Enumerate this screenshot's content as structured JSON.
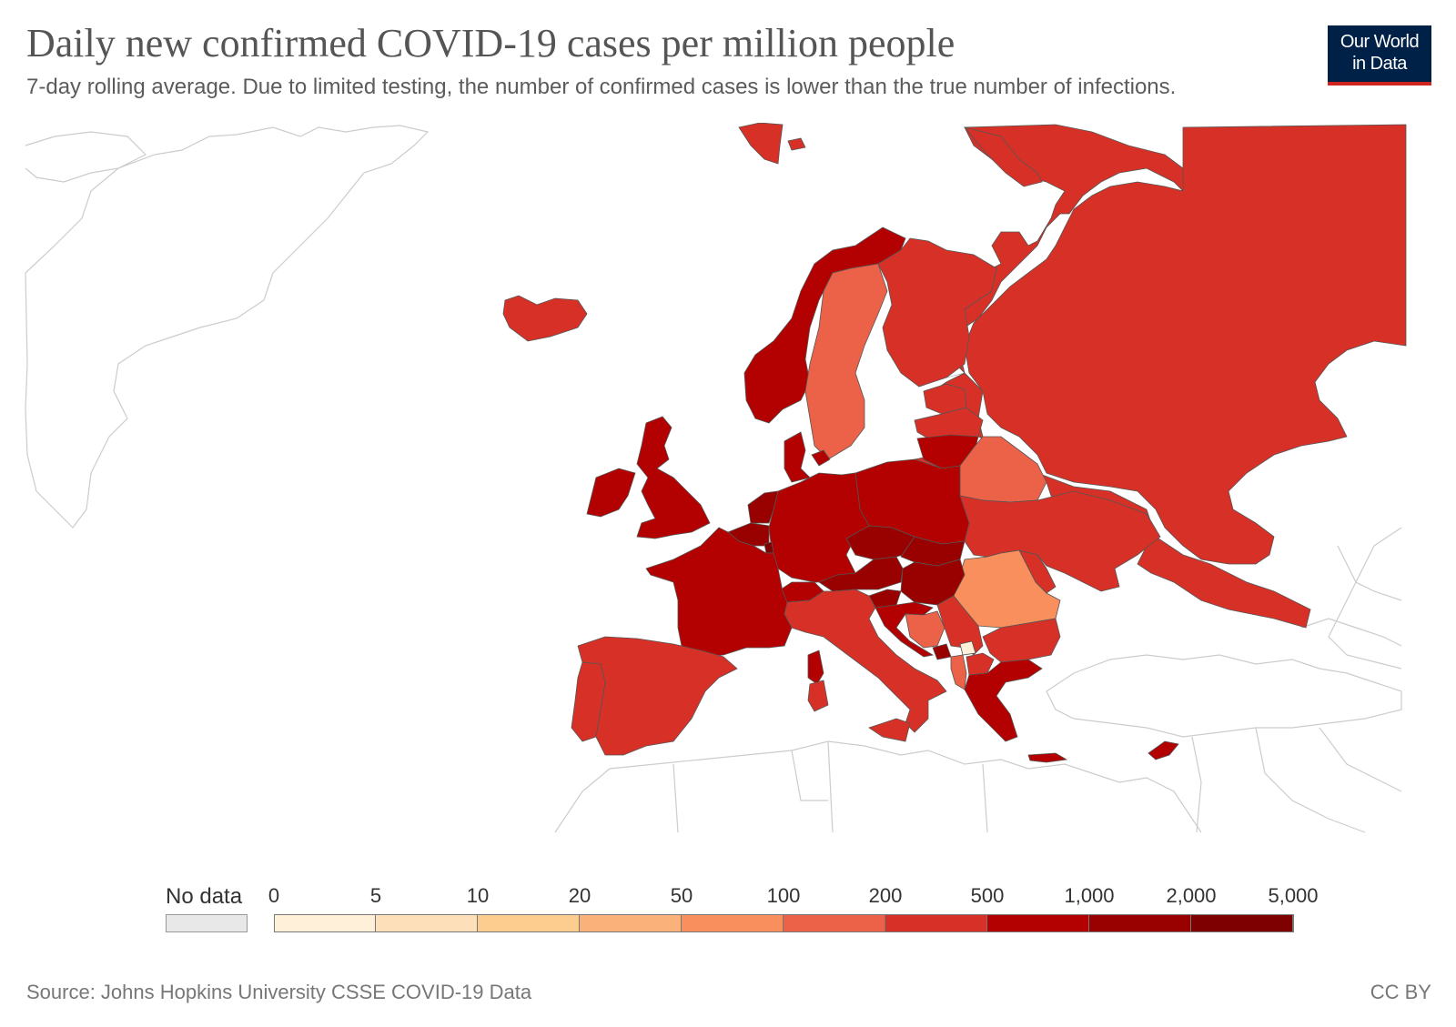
{
  "title": "Daily new confirmed COVID-19 cases per million people",
  "subtitle": "7-day rolling average. Due to limited testing, the number of confirmed cases is lower than the true number of infections.",
  "logo": {
    "line1": "Our World",
    "line2": "in Data"
  },
  "legend": {
    "no_data_label": "No data",
    "no_data_color": "#e8e8e8",
    "ticks": [
      "0",
      "5",
      "10",
      "20",
      "50",
      "100",
      "200",
      "500",
      "1,000",
      "2,000",
      "5,000"
    ],
    "bins": [
      {
        "from": 0,
        "to": 5,
        "color": "#fef0d9"
      },
      {
        "from": 5,
        "to": 10,
        "color": "#fde0b9"
      },
      {
        "from": 10,
        "to": 20,
        "color": "#fdcd8f"
      },
      {
        "from": 20,
        "to": 50,
        "color": "#fbb27a"
      },
      {
        "from": 50,
        "to": 100,
        "color": "#f98f5c"
      },
      {
        "from": 100,
        "to": 200,
        "color": "#ec6248"
      },
      {
        "from": 200,
        "to": 500,
        "color": "#d73127"
      },
      {
        "from": 500,
        "to": 1000,
        "color": "#b30000"
      },
      {
        "from": 1000,
        "to": 2000,
        "color": "#990000"
      },
      {
        "from": 2000,
        "to": 5000,
        "color": "#7f0000"
      }
    ]
  },
  "map_bins": {
    "200-500": [
      "Russia",
      "Finland",
      "Iceland",
      "Ireland",
      "Spain",
      "Portugal",
      "Italy",
      "Ukraine",
      "Moldova",
      "Bulgaria",
      "Serbia",
      "Latvia",
      "Estonia",
      "Svalbard"
    ],
    "100-200": [
      "Sweden",
      "Belarus",
      "Bosnia and Herzegovina",
      "Albania"
    ],
    "50-100": [
      "Romania"
    ],
    "0-5": [
      "Kosovo"
    ],
    "500-1000": [
      "Norway",
      "United Kingdom",
      "Northern Ireland",
      "France",
      "Germany",
      "Denmark",
      "Poland",
      "Lithuania",
      "Switzerland",
      "Greece",
      "Croatia",
      "Sardinia",
      "Cyprus",
      "Crete"
    ],
    "1000-2000": [
      "Belgium",
      "Netherlands",
      "Austria",
      "Slovakia",
      "Hungary",
      "Slovenia",
      "Montenegro"
    ],
    "2000-5000": [
      "Czechia",
      "Luxembourg"
    ]
  },
  "colors": {
    "brand_navy": "#002147",
    "brand_red": "#ce261e",
    "border": "#555555",
    "background_outline": "#cccccc"
  },
  "source": "Source: Johns Hopkins University CSSE COVID-19 Data",
  "license": "CC BY"
}
